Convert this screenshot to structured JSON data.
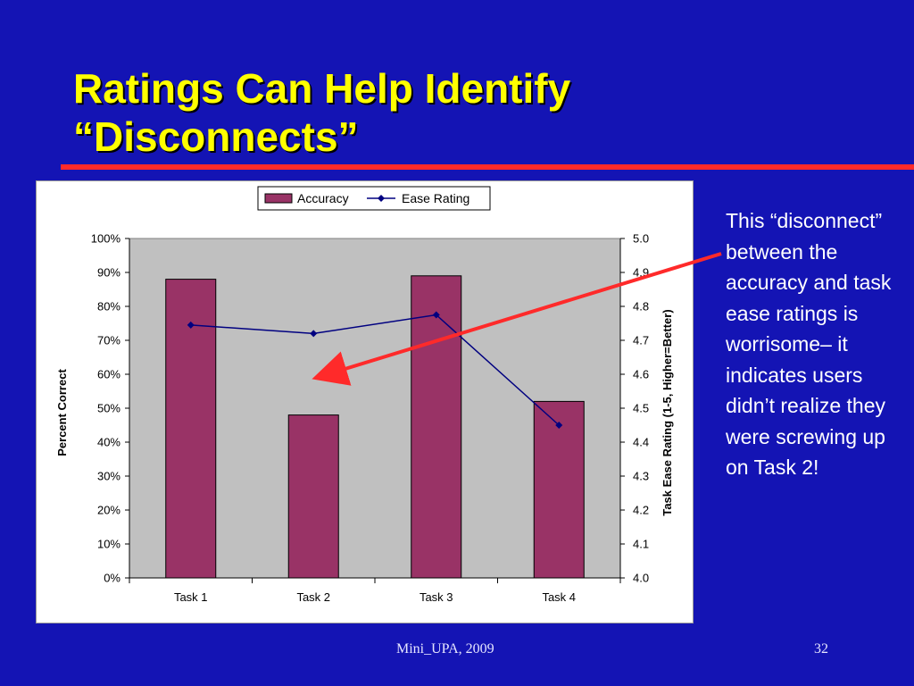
{
  "slide": {
    "title_line1": "Ratings Can Help Identify",
    "title_line2": "“Disconnects”",
    "side_text": "This “disconnect” between the accuracy and task ease ratings is worrisome– it indicates users didn’t realize they were screwing up on Task 2!",
    "footer_left": "Mini_UPA, 2009",
    "footer_right": "32",
    "colors": {
      "background": "#1414b4",
      "title": "#ffff00",
      "rule": "#ff2a2a",
      "arrow": "#ff2a2a"
    }
  },
  "chart_data": {
    "type": "bar",
    "categories": [
      "Task 1",
      "Task 2",
      "Task 3",
      "Task 4"
    ],
    "series": [
      {
        "name": "Accuracy",
        "type": "bar",
        "axis": "left",
        "color": "#993366",
        "values": [
          88,
          48,
          89,
          52
        ]
      },
      {
        "name": "Ease Rating",
        "type": "line",
        "axis": "right",
        "color": "#000080",
        "marker": "diamond",
        "values": [
          4.745,
          4.72,
          4.775,
          4.45
        ]
      }
    ],
    "ylabel": "Percent Correct",
    "ylabel_right": "Task Ease Rating (1-5, Higher=Better)",
    "ylim": [
      0,
      100
    ],
    "ylim_right": [
      4.0,
      5.0
    ],
    "yticks": [
      "0%",
      "10%",
      "20%",
      "30%",
      "40%",
      "50%",
      "60%",
      "70%",
      "80%",
      "90%",
      "100%"
    ],
    "yticks_right": [
      "4.0",
      "4.1",
      "4.2",
      "4.3",
      "4.4",
      "4.5",
      "4.6",
      "4.7",
      "4.8",
      "4.9",
      "5.0"
    ],
    "plot_background": "#c0c0c0",
    "grid": false,
    "legend_position": "top"
  }
}
